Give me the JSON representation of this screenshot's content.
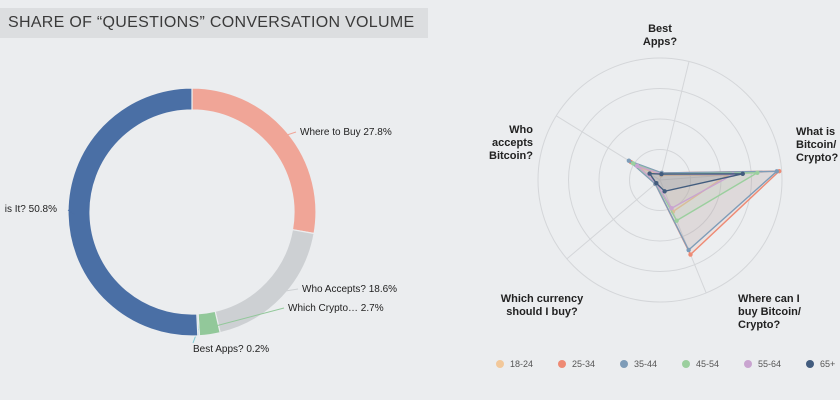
{
  "header": {
    "title": "SHARE OF “QUESTIONS” CONVERSATION VOLUME"
  },
  "chart_data": [
    {
      "type": "pie",
      "variant": "donut",
      "categories": [
        "Where to Buy",
        "Who Accepts?",
        "Which Crypto…",
        "Best Apps?",
        "What is It?"
      ],
      "labels": [
        "Where to Buy 27.8%",
        "Who Accepts? 18.6%",
        "Which Crypto… 2.7%",
        "Best Apps? 0.2%",
        "is It? 50.8%"
      ],
      "values": [
        27.8,
        18.6,
        2.7,
        0.2,
        50.8
      ],
      "colors": [
        "#f0a597",
        "#cdd0d3",
        "#92c89a",
        "#7ccbd5",
        "#4a6fa5"
      ]
    },
    {
      "type": "radar",
      "axes": [
        "Best Apps?",
        "What is Bitcoin/ Crypto?",
        "Where can I buy Bitcoin/ Crypto?",
        "Which currency should I buy?",
        "Who accepts Bitcoin?"
      ],
      "range": [
        0,
        1
      ],
      "series": [
        {
          "name": "18-24",
          "color": "#f2c89a",
          "values": [
            0.04,
            0.55,
            0.28,
            0.04,
            0.2
          ]
        },
        {
          "name": "25-34",
          "color": "#ee8a74",
          "values": [
            0.06,
            0.98,
            0.66,
            0.05,
            0.28
          ]
        },
        {
          "name": "35-44",
          "color": "#7e9cb8",
          "values": [
            0.06,
            0.96,
            0.62,
            0.05,
            0.3
          ]
        },
        {
          "name": "45-54",
          "color": "#9bcf9e",
          "values": [
            0.05,
            0.8,
            0.36,
            0.04,
            0.26
          ]
        },
        {
          "name": "55-64",
          "color": "#c9a4d0",
          "values": [
            0.05,
            0.6,
            0.25,
            0.04,
            0.22
          ]
        },
        {
          "name": "65+",
          "color": "#425c7e",
          "values": [
            0.05,
            0.68,
            0.1,
            0.04,
            0.1
          ]
        }
      ]
    }
  ]
}
